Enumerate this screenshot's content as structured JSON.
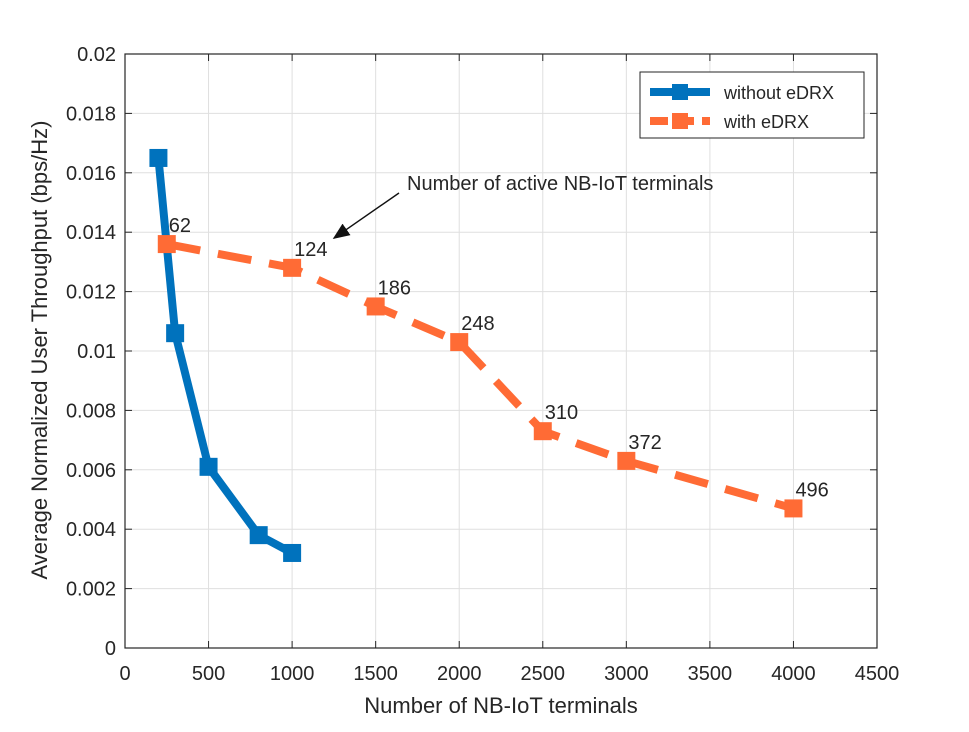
{
  "chart_data": {
    "type": "line",
    "title": "",
    "xlabel": "Number of NB-IoT terminals",
    "ylabel": "Average Normalized User Throughput (bps/Hz)",
    "xlim": [
      0,
      4500
    ],
    "ylim": [
      0,
      0.02
    ],
    "xticks": [
      0,
      500,
      1000,
      1500,
      2000,
      2500,
      3000,
      3500,
      4000,
      4500
    ],
    "yticks": [
      0,
      0.002,
      0.004,
      0.006,
      0.008,
      0.01,
      0.012,
      0.014,
      0.016,
      0.018,
      0.02
    ],
    "xtick_labels": [
      "0",
      "500",
      "1000",
      "1500",
      "2000",
      "2500",
      "3000",
      "3500",
      "4000",
      "4500"
    ],
    "ytick_labels": [
      "0",
      "0.002",
      "0.004",
      "0.006",
      "0.008",
      "0.01",
      "0.012",
      "0.014",
      "0.016",
      "0.018",
      "0.02"
    ],
    "grid": true,
    "legend_position": "top-right",
    "series": [
      {
        "name": "without eDRX",
        "color": "#0072BD",
        "line_style": "solid",
        "marker": "square",
        "x": [
          200,
          300,
          500,
          800,
          1000
        ],
        "y": [
          0.0165,
          0.0106,
          0.0061,
          0.0038,
          0.0032
        ]
      },
      {
        "name": "with eDRX",
        "color": "#FF6B35",
        "line_style": "dashed",
        "marker": "square",
        "x": [
          250,
          1000,
          1500,
          2000,
          2500,
          3000,
          4000
        ],
        "y": [
          0.0136,
          0.0128,
          0.0115,
          0.0103,
          0.0073,
          0.0063,
          0.0047
        ],
        "point_labels": [
          "62",
          "124",
          "186",
          "248",
          "310",
          "372",
          "496"
        ]
      }
    ],
    "annotations": [
      {
        "text": "Number of active NB-IoT terminals",
        "target_x": 1250,
        "target_y": 0.0138
      }
    ]
  }
}
